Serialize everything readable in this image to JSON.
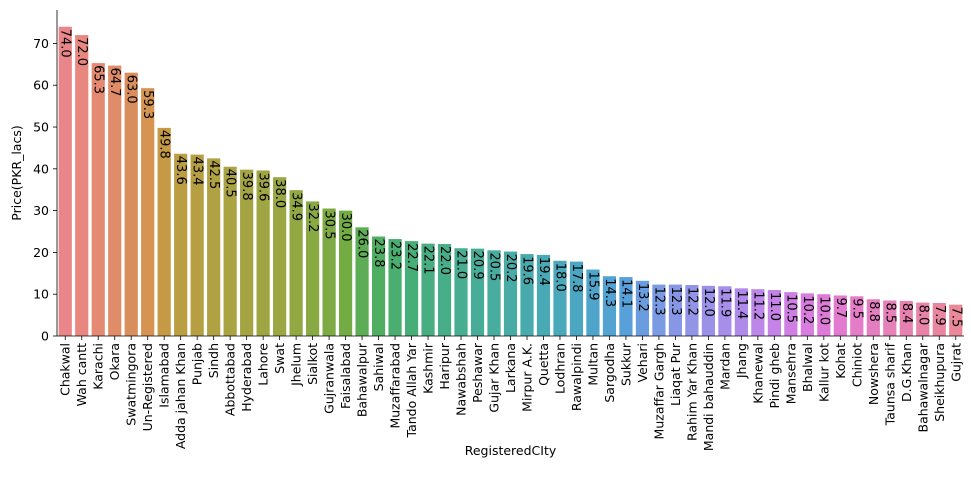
{
  "chart_data": {
    "type": "bar",
    "title": "",
    "xlabel": "RegisteredCIty",
    "ylabel": "Price(PKR_lacs)",
    "ylim": [
      0,
      78
    ],
    "yticks": [
      0,
      10,
      20,
      30,
      40,
      50,
      60,
      70
    ],
    "grid": false,
    "legend": "none",
    "categories": [
      "Chakwal",
      "Wah cantt",
      "Karachi",
      "Okara",
      "Swatmingora",
      "Un-Registered",
      "Islamabad",
      "Adda jahan Khan",
      "Punjab",
      "Sindh",
      "Abbottabad",
      "Hyderabad",
      "Lahore",
      "Swat",
      "Jhelum",
      "Sialkot",
      "Gujranwala",
      "Faisalabad",
      "Bahawalpur",
      "Sahiwal",
      "Muzaffarabad",
      "Tando Allah Yar",
      "Kashmir",
      "Haripur",
      "Nawabshah",
      "Peshawar",
      "Gujar Khan",
      "Larkana",
      "Mirpur A.K.",
      "Quetta",
      "Lodhran",
      "Rawalpindi",
      "Multan",
      "Sargodha",
      "Sukkur",
      "Vehari",
      "Muzaffar Gargh",
      "Liaqat Pur",
      "Rahim Yar Khan",
      "Mandi bahauddin",
      "Mardan",
      "Jhang",
      "Khanewal",
      "Pindi gheb",
      "Mansehra",
      "Bhalwal",
      "Kallur kot",
      "Kohat",
      "Chiniot",
      "Nowshera",
      "Taunsa sharif",
      "D.G.Khan",
      "Bahawalnagar",
      "Sheikhupura",
      "Gujrat"
    ],
    "values": [
      74.0,
      72.0,
      65.3,
      64.7,
      63.0,
      59.3,
      49.8,
      43.6,
      43.4,
      42.5,
      40.5,
      39.8,
      39.6,
      38.0,
      34.9,
      32.2,
      30.5,
      30.0,
      26.0,
      23.8,
      23.2,
      22.7,
      22.1,
      22.0,
      21.0,
      20.9,
      20.5,
      20.2,
      19.6,
      19.4,
      18.0,
      17.8,
      15.9,
      14.3,
      14.1,
      13.2,
      12.3,
      12.3,
      12.2,
      12.0,
      11.9,
      11.4,
      11.2,
      11.0,
      10.5,
      10.2,
      10.0,
      9.7,
      9.5,
      8.8,
      8.5,
      8.4,
      8.0,
      7.9,
      7.5
    ],
    "value_labels": [
      "74.0",
      "72.0",
      "65.3",
      "64.7",
      "63.0",
      "59.3",
      "49.8",
      "43.6",
      "43.4",
      "42.5",
      "40.5",
      "39.8",
      "39.6",
      "38.0",
      "34.9",
      "32.2",
      "30.5",
      "30.0",
      "26.0",
      "23.8",
      "23.2",
      "22.7",
      "22.1",
      "22.0",
      "21.0",
      "20.9",
      "20.5",
      "20.2",
      "19.6",
      "19.4",
      "18.0",
      "17.8",
      "15.9",
      "14.3",
      "14.1",
      "13.2",
      "12.3",
      "12.3",
      "12.2",
      "12.0",
      "11.9",
      "11.4",
      "11.2",
      "11.0",
      "10.5",
      "10.2",
      "10.0",
      "9.7",
      "9.5",
      "8.8",
      "8.5",
      "8.4",
      "8.0",
      "7.9",
      "7.5"
    ],
    "colors": [
      "#e8868a",
      "#e88780",
      "#e58a72",
      "#e08c68",
      "#d98f5d",
      "#d69352",
      "#c69a45",
      "#bb9d42",
      "#b59f42",
      "#b0a142",
      "#aaa342",
      "#a5a442",
      "#a0a543",
      "#9aa743",
      "#92a843",
      "#89aa43",
      "#7daa43",
      "#74ac44",
      "#5cad56",
      "#50ae62",
      "#4aae70",
      "#48ae78",
      "#48ae82",
      "#48ae89",
      "#48ad91",
      "#48ad98",
      "#48ac9f",
      "#48aba6",
      "#49aaad",
      "#49a9b4",
      "#4aa8bb",
      "#4ba6c2",
      "#4ea4ca",
      "#52a2d2",
      "#58a0da",
      "#6a9de0",
      "#7b9ae4",
      "#8797e6",
      "#9294e8",
      "#9c91e8",
      "#a68eea",
      "#b08aeb",
      "#bc86ea",
      "#c583e8",
      "#cf7fe4",
      "#d87ce0",
      "#de7bd8",
      "#e27bd0",
      "#e47cc8",
      "#e57ec0",
      "#e680b8",
      "#e782b0",
      "#e884a8",
      "#e886a0",
      "#e88898"
    ]
  }
}
